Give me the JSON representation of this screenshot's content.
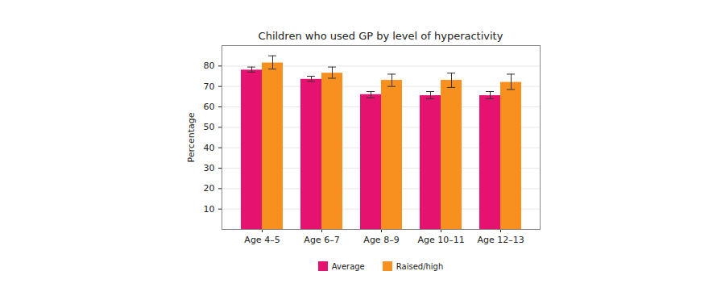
{
  "chart_data": {
    "type": "bar",
    "title": "Children who used GP by level of hyperactivity",
    "y_label": "Percentage",
    "categories": [
      "Age 4–5",
      "Age 6–7",
      "Age 8–9",
      "Age 10–11",
      "Age 12–13"
    ],
    "series": [
      {
        "name": "Average",
        "color": "#e5126f",
        "values": [
          78,
          73.5,
          66,
          65.5,
          65.5
        ],
        "error_low": [
          77,
          72.5,
          64.5,
          64,
          64
        ],
        "error_high": [
          79.5,
          75,
          67.5,
          67.5,
          67.5
        ]
      },
      {
        "name": "Raised/high",
        "color": "#f7901e",
        "values": [
          81.5,
          76.5,
          73,
          73,
          72
        ],
        "error_low": [
          78.5,
          74,
          70,
          69.5,
          68.5
        ],
        "error_high": [
          85,
          79.5,
          76,
          76.5,
          76
        ]
      }
    ],
    "ylim": [
      0,
      90
    ],
    "yticks": [
      10,
      20,
      30,
      40,
      50,
      60,
      70,
      80
    ],
    "grid": true,
    "legend": "bottom"
  }
}
